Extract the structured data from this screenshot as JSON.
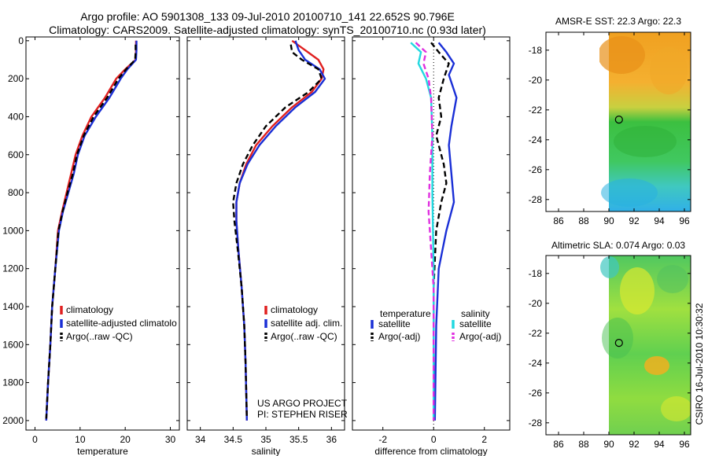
{
  "header": {
    "line1": "Argo profile: AO 5901308_133 09-Jul-2010 20100710_141 22.652S 90.796E",
    "line2": "Climatology: CARS2009. Satellite-adjusted climatology: synTS_20100710.nc (0.93d later)"
  },
  "side_label": "CSIRO 16-Jul-2010 10:30:32",
  "colors": {
    "red": "#e02020",
    "blue": "#1a2fd6",
    "black": "#000000",
    "cyan": "#22d8e0",
    "magenta": "#e030e0"
  },
  "chart_data": [
    {
      "type": "line",
      "panel": "temperature",
      "xlabel": "temperature",
      "xlim": [
        -2,
        32
      ],
      "ylim": [
        2050,
        -20
      ],
      "xticks": [
        0,
        10,
        20,
        30
      ],
      "yticks": [
        0,
        200,
        400,
        600,
        800,
        1000,
        1200,
        1400,
        1600,
        1800,
        2000
      ],
      "series": [
        {
          "name": "climatology",
          "color": "#e02020",
          "points": [
            [
              22.4,
              0
            ],
            [
              22.4,
              50
            ],
            [
              22.3,
              100
            ],
            [
              20,
              150
            ],
            [
              18,
              200
            ],
            [
              15.5,
              300
            ],
            [
              12.5,
              400
            ],
            [
              10.5,
              500
            ],
            [
              9,
              600
            ],
            [
              8,
              700
            ],
            [
              7,
              800
            ],
            [
              6,
              900
            ],
            [
              5.1,
              1000
            ],
            [
              4.5,
              1200
            ],
            [
              3.8,
              1400
            ],
            [
              3.4,
              1600
            ],
            [
              2.9,
              1800
            ],
            [
              2.5,
              2000
            ]
          ]
        },
        {
          "name": "satellite-adjusted climatology",
          "color": "#1a2fd6",
          "points": [
            [
              22.5,
              0
            ],
            [
              22.5,
              50
            ],
            [
              22.4,
              100
            ],
            [
              20.5,
              150
            ],
            [
              19,
              200
            ],
            [
              16.5,
              300
            ],
            [
              13.5,
              400
            ],
            [
              11,
              500
            ],
            [
              9.5,
              600
            ],
            [
              8.6,
              700
            ],
            [
              7.4,
              800
            ],
            [
              6.2,
              900
            ],
            [
              5.3,
              1000
            ],
            [
              4.5,
              1200
            ],
            [
              3.8,
              1400
            ],
            [
              3.4,
              1600
            ],
            [
              2.9,
              1800
            ],
            [
              2.5,
              2000
            ]
          ]
        },
        {
          "name": "Argo(..raw -QC)",
          "color": "#000000",
          "dash": true,
          "points": [
            [
              22.3,
              20
            ],
            [
              22.3,
              60
            ],
            [
              22.2,
              100
            ],
            [
              20.2,
              150
            ],
            [
              18.5,
              200
            ],
            [
              16,
              300
            ],
            [
              13,
              400
            ],
            [
              10.8,
              500
            ],
            [
              9.3,
              600
            ],
            [
              8.4,
              700
            ],
            [
              7.2,
              800
            ],
            [
              6.1,
              900
            ],
            [
              5.2,
              1000
            ],
            [
              4.5,
              1200
            ],
            [
              3.8,
              1400
            ],
            [
              3.4,
              1600
            ],
            [
              2.9,
              1800
            ],
            [
              2.5,
              1990
            ]
          ]
        }
      ],
      "legend": [
        "climatology",
        "satellite-adjusted climatolo",
        "Argo(..raw -QC)"
      ]
    },
    {
      "type": "line",
      "panel": "salinity",
      "xlabel": "salinity",
      "xlim": [
        33.8,
        36.2
      ],
      "ylim": [
        2050,
        -20
      ],
      "xticks": [
        34,
        34.5,
        35,
        35.5,
        36
      ],
      "yticks": [
        0,
        200,
        400,
        600,
        800,
        1000,
        1200,
        1400,
        1600,
        1800,
        2000
      ],
      "series": [
        {
          "name": "climatology",
          "color": "#e02020",
          "points": [
            [
              35.4,
              0
            ],
            [
              35.6,
              50
            ],
            [
              35.8,
              100
            ],
            [
              35.88,
              150
            ],
            [
              35.85,
              200
            ],
            [
              35.7,
              270
            ],
            [
              35.4,
              350
            ],
            [
              35.1,
              450
            ],
            [
              34.85,
              550
            ],
            [
              34.7,
              650
            ],
            [
              34.6,
              750
            ],
            [
              34.55,
              850
            ],
            [
              34.55,
              950
            ],
            [
              34.58,
              1100
            ],
            [
              34.63,
              1300
            ],
            [
              34.67,
              1500
            ],
            [
              34.69,
              1700
            ],
            [
              34.71,
              2000
            ]
          ]
        },
        {
          "name": "satellite adj. clim.",
          "color": "#1a2fd6",
          "points": [
            [
              35.45,
              0
            ],
            [
              35.5,
              50
            ],
            [
              35.6,
              100
            ],
            [
              35.82,
              150
            ],
            [
              35.9,
              200
            ],
            [
              35.75,
              270
            ],
            [
              35.45,
              350
            ],
            [
              35.15,
              450
            ],
            [
              34.9,
              550
            ],
            [
              34.72,
              650
            ],
            [
              34.6,
              750
            ],
            [
              34.55,
              850
            ],
            [
              34.55,
              950
            ],
            [
              34.58,
              1100
            ],
            [
              34.63,
              1300
            ],
            [
              34.67,
              1500
            ],
            [
              34.69,
              1700
            ],
            [
              34.71,
              2000
            ]
          ]
        },
        {
          "name": "Argo(..raw -QC)",
          "color": "#000000",
          "dash": true,
          "points": [
            [
              35.38,
              20
            ],
            [
              35.4,
              60
            ],
            [
              35.55,
              100
            ],
            [
              35.8,
              150
            ],
            [
              35.85,
              200
            ],
            [
              35.65,
              270
            ],
            [
              35.3,
              350
            ],
            [
              35.0,
              450
            ],
            [
              34.8,
              550
            ],
            [
              34.65,
              650
            ],
            [
              34.55,
              750
            ],
            [
              34.5,
              850
            ],
            [
              34.52,
              950
            ],
            [
              34.57,
              1100
            ],
            [
              34.63,
              1300
            ],
            [
              34.67,
              1500
            ],
            [
              34.69,
              1700
            ],
            [
              34.71,
              1990
            ]
          ]
        }
      ],
      "legend": [
        "climatology",
        "satellite adj. clim.",
        "Argo(..raw -QC)"
      ],
      "annotations": [
        "US ARGO PROJECT",
        "PI: STEPHEN RISER"
      ]
    },
    {
      "type": "line",
      "panel": "difference",
      "xlabel": "difference from climatology",
      "xlim": [
        -3.2,
        3.0
      ],
      "ylim": [
        2050,
        -20
      ],
      "xticks": [
        -2,
        0,
        2
      ],
      "yticks": [
        0,
        200,
        400,
        600,
        800,
        1000,
        1200,
        1400,
        1600,
        1800,
        2000
      ],
      "series": [
        {
          "name": "temperature satellite",
          "color": "#1a2fd6",
          "points": [
            [
              0.2,
              10
            ],
            [
              0.5,
              60
            ],
            [
              0.8,
              120
            ],
            [
              0.6,
              180
            ],
            [
              0.9,
              300
            ],
            [
              0.7,
              450
            ],
            [
              0.6,
              550
            ],
            [
              0.7,
              700
            ],
            [
              0.8,
              850
            ],
            [
              0.5,
              1000
            ],
            [
              0.2,
              1200
            ],
            [
              0.1,
              1500
            ],
            [
              0.05,
              2000
            ]
          ]
        },
        {
          "name": "temperature Argo(-adj)",
          "color": "#000000",
          "dash": true,
          "points": [
            [
              -0.1,
              10
            ],
            [
              0.2,
              60
            ],
            [
              0.6,
              120
            ],
            [
              0.4,
              200
            ],
            [
              0.2,
              300
            ],
            [
              0.3,
              400
            ],
            [
              0.1,
              500
            ],
            [
              0.4,
              650
            ],
            [
              0.5,
              750
            ],
            [
              0.3,
              850
            ],
            [
              0.1,
              1000
            ],
            [
              0.0,
              1300
            ],
            [
              0.0,
              2000
            ]
          ]
        },
        {
          "name": "salinity satellite",
          "color": "#22d8e0",
          "points": [
            [
              -0.9,
              10
            ],
            [
              -0.5,
              60
            ],
            [
              -0.6,
              120
            ],
            [
              -0.3,
              200
            ],
            [
              -0.1,
              300
            ],
            [
              -0.05,
              500
            ],
            [
              -0.05,
              800
            ],
            [
              0.0,
              1200
            ],
            [
              0.0,
              2000
            ]
          ]
        },
        {
          "name": "salinity Argo(-adj)",
          "color": "#e030e0",
          "dash": true,
          "points": [
            [
              -0.7,
              10
            ],
            [
              -0.3,
              60
            ],
            [
              -0.4,
              120
            ],
            [
              -0.2,
              200
            ],
            [
              -0.1,
              300
            ],
            [
              -0.05,
              500
            ],
            [
              -0.15,
              700
            ],
            [
              -0.2,
              900
            ],
            [
              -0.1,
              1100
            ],
            [
              0.0,
              1300
            ],
            [
              0.0,
              2000
            ]
          ]
        }
      ],
      "legend_titles": [
        "temperature",
        "salinity"
      ],
      "legend": [
        "satellite",
        "Argo(-adj)",
        "satellite",
        "Argo(-adj)"
      ]
    },
    {
      "type": "heatmap",
      "panel": "sst",
      "title": "AMSR-E SST: 22.3 Argo: 22.3",
      "xlim": [
        85,
        96.5
      ],
      "ylim": [
        -28.8,
        -16.8
      ],
      "xticks": [
        86,
        88,
        90,
        92,
        94,
        96
      ],
      "yticks": [
        -18,
        -20,
        -22,
        -24,
        -26,
        -28
      ],
      "data_xlim": [
        90,
        96.5
      ],
      "marker": [
        90.8,
        -22.65
      ]
    },
    {
      "type": "heatmap",
      "panel": "sla",
      "title": "Altimetric SLA: 0.074 Argo: 0.03",
      "xlim": [
        85,
        96.5
      ],
      "ylim": [
        -28.8,
        -16.8
      ],
      "xticks": [
        86,
        88,
        90,
        92,
        94,
        96
      ],
      "yticks": [
        -18,
        -20,
        -22,
        -24,
        -26,
        -28
      ],
      "data_xlim": [
        90,
        96.5
      ],
      "marker": [
        90.8,
        -22.65
      ]
    }
  ]
}
